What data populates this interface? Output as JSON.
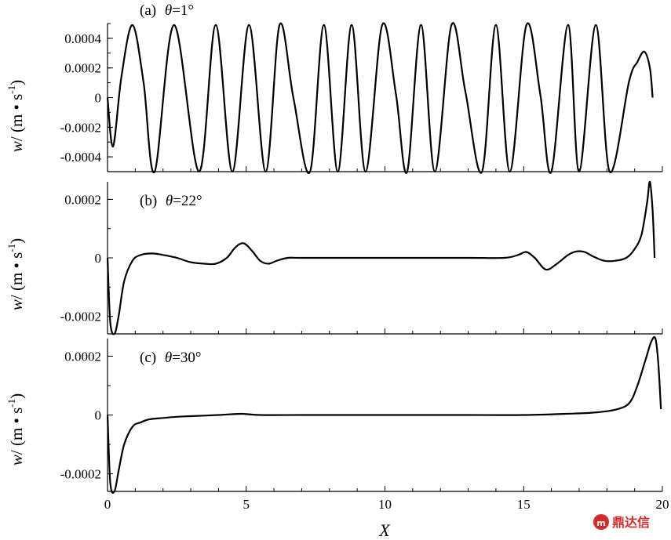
{
  "chart_data": [
    {
      "type": "line",
      "panel": "a",
      "title_prefix": "(a)",
      "theta_symbol": "θ",
      "theta_value": "=1°",
      "ylabel": "w/ (m • s-1)",
      "ylabel_parts": {
        "var": "w",
        "rest": "/ (m • s",
        "sup": "-1",
        "close": ")"
      },
      "ylim": [
        -0.0005,
        0.0005
      ],
      "yticks": [
        -0.0004,
        -0.0002,
        0,
        0.0002,
        0.0004
      ],
      "ytick_labels": [
        "-0.0004",
        "-0.0002",
        "0",
        "0.0002",
        "0.0004"
      ],
      "xlim": [
        0,
        20
      ],
      "series": [
        {
          "x": [
            0,
            0.2,
            0.5,
            0.9,
            1.3,
            1.7,
            2.4,
            3.3,
            3.9,
            4.5,
            5.1,
            5.7,
            6.2,
            6.7,
            7.3,
            7.8,
            8.3,
            8.8,
            9.3,
            9.9,
            10.4,
            10.8,
            11.3,
            11.8,
            12.4,
            12.9,
            13.5,
            14.0,
            14.5,
            15.1,
            15.6,
            16.0,
            16.6,
            17.0,
            17.6,
            18.1,
            18.8,
            19.1,
            19.35,
            19.55,
            19.65
          ],
          "y": [
            0,
            -0.00033,
            0.00014,
            0.00049,
            0.0001,
            -0.0005,
            0.00049,
            -0.0005,
            0.00049,
            -0.0005,
            0.00049,
            -0.0005,
            0.00049,
            0.0,
            -0.0005,
            0.00049,
            -0.0005,
            0.00049,
            -0.0005,
            0.00049,
            2e-05,
            -0.0005,
            0.00049,
            -0.0005,
            0.00049,
            4e-05,
            -0.0005,
            0.00049,
            -0.0005,
            0.00049,
            2e-05,
            -0.0005,
            0.00049,
            -0.0005,
            0.00049,
            -0.0005,
            0.00011,
            0.00024,
            0.00031,
            0.0002,
            0.0
          ]
        }
      ]
    },
    {
      "type": "line",
      "panel": "b",
      "title_prefix": "(b)",
      "theta_symbol": "θ",
      "theta_value": "=22°",
      "ylabel": "w/ (m • s-1)",
      "ylabel_parts": {
        "var": "w",
        "rest": "/ (m • s",
        "sup": "-1",
        "close": ")"
      },
      "ylim": [
        -0.00026,
        0.00026
      ],
      "yticks": [
        -0.0002,
        0,
        0.0002
      ],
      "ytick_labels": [
        "-0.0002",
        "0",
        "0.0002"
      ],
      "xlim": [
        0,
        20
      ],
      "series": [
        {
          "x": [
            0,
            0.1,
            0.25,
            0.4,
            0.6,
            0.9,
            1.2,
            1.6,
            2.0,
            2.5,
            3.0,
            3.5,
            3.9,
            4.3,
            4.6,
            4.9,
            5.2,
            5.5,
            5.8,
            6.1,
            6.5,
            7.0,
            9.0,
            11.0,
            13.0,
            14.3,
            14.8,
            15.1,
            15.4,
            15.8,
            16.2,
            16.6,
            16.9,
            17.2,
            17.5,
            17.9,
            18.3,
            18.7,
            19.0,
            19.25,
            19.45,
            19.55,
            19.65,
            19.72
          ],
          "y": [
            0,
            -0.00022,
            -0.00026,
            -0.0002,
            -8e-05,
            -1e-05,
            1e-05,
            1.5e-05,
            1e-05,
            0.0,
            -1.5e-05,
            -2e-05,
            -2e-05,
            0.0,
            3.5e-05,
            5e-05,
            2.5e-05,
            -1e-05,
            -2e-05,
            -1e-05,
            0.0,
            0.0,
            0.0,
            0.0,
            0.0,
            0.0,
            1e-05,
            2e-05,
            0.0,
            -4e-05,
            -2e-05,
            1e-05,
            2.2e-05,
            2e-05,
            5e-06,
            -1e-05,
            -1e-05,
            0.0,
            3e-05,
            8e-05,
            0.00019,
            0.00026,
            0.00016,
            0.0
          ]
        }
      ]
    },
    {
      "type": "line",
      "panel": "c",
      "title_prefix": "(c)",
      "theta_symbol": "θ",
      "theta_value": "=30°",
      "ylabel": "w/ (m • s-1)",
      "ylabel_parts": {
        "var": "w",
        "rest": "/ (m • s",
        "sup": "-1",
        "close": ")"
      },
      "ylim": [
        -0.00026,
        0.00026
      ],
      "yticks": [
        -0.0002,
        0,
        0.0002
      ],
      "ytick_labels": [
        "-0.0002",
        "0",
        "0.0002"
      ],
      "xlim": [
        0,
        20
      ],
      "xticks": [
        0,
        5,
        10,
        15,
        20
      ],
      "xtick_labels": [
        "0",
        "5",
        "10",
        "15",
        "20"
      ],
      "xlabel": "X",
      "series": [
        {
          "x": [
            0,
            0.1,
            0.25,
            0.4,
            0.6,
            0.9,
            1.2,
            1.5,
            2.0,
            2.5,
            3.0,
            4.0,
            4.8,
            5.5,
            7.0,
            9.0,
            11.0,
            13.0,
            15.0,
            16.5,
            17.5,
            18.3,
            18.8,
            19.1,
            19.4,
            19.6,
            19.75,
            19.85,
            19.95
          ],
          "y": [
            0,
            -0.00023,
            -0.00026,
            -0.00019,
            -0.0001,
            -4e-05,
            -2.5e-05,
            -1.5e-05,
            -1e-05,
            -6e-06,
            -4e-06,
            0.0,
            4e-06,
            0.0,
            0.0,
            0.0,
            0.0,
            0.0,
            0.0,
            4e-06,
            8e-06,
            1.8e-05,
            4e-05,
            0.0001,
            0.00019,
            0.00025,
            0.00026,
            0.00018,
            2e-05
          ]
        }
      ]
    }
  ],
  "watermark": {
    "icon": "logo-mark",
    "text": "鼎达信"
  }
}
